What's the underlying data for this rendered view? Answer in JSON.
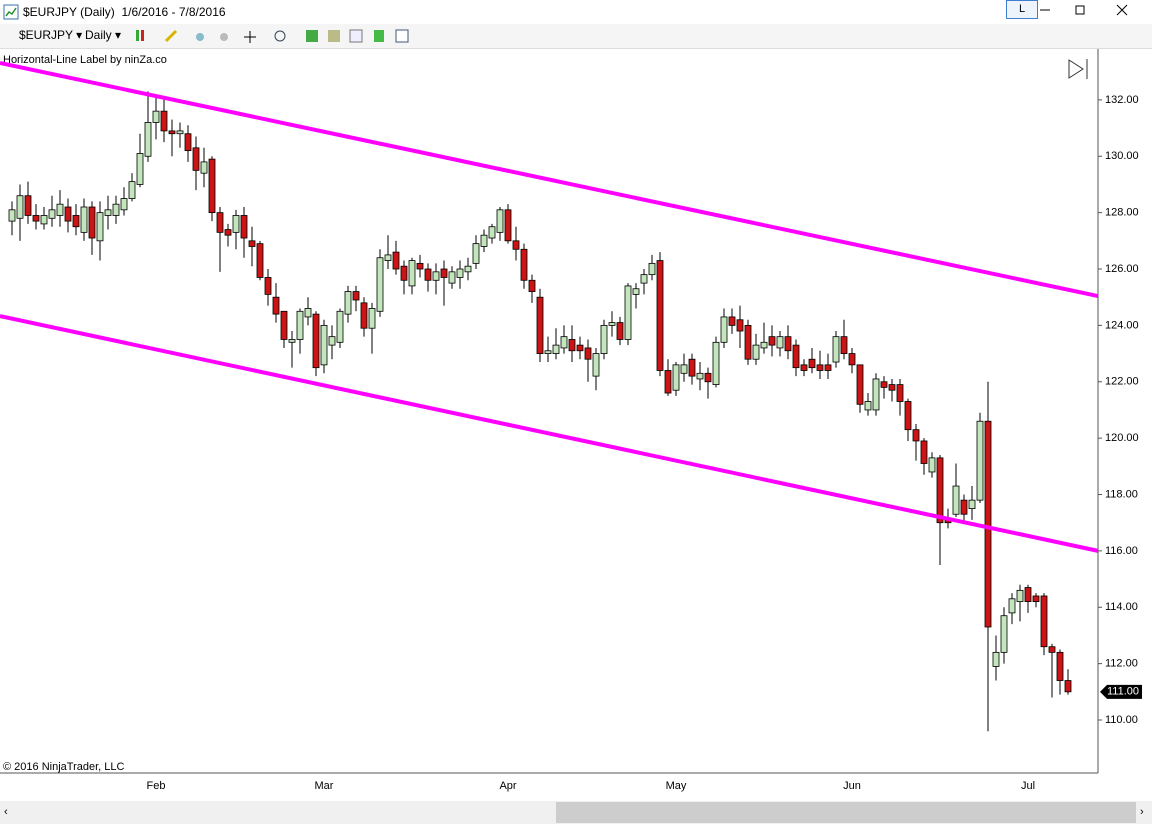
{
  "ui": {
    "window_title": "$EURJPY (Daily)  1/6/2016 - 7/8/2016",
    "instrument": "$EURJPY",
    "interval": "Daily",
    "layout_button": "L",
    "indicator_label": "Horizontal-Line Label by ninZa.co",
    "copyright": "© 2016 NinjaTrader, LLC"
  },
  "chart_data": {
    "type": "candlestick",
    "categories": [
      null,
      null,
      null,
      null,
      null,
      null,
      null,
      null,
      null,
      null,
      null,
      null,
      null,
      null,
      null,
      null,
      null,
      null,
      "Feb",
      null,
      null,
      null,
      null,
      null,
      null,
      null,
      null,
      null,
      null,
      null,
      null,
      null,
      null,
      null,
      null,
      null,
      null,
      null,
      null,
      "Mar",
      null,
      null,
      null,
      null,
      null,
      null,
      null,
      null,
      null,
      null,
      null,
      null,
      null,
      null,
      null,
      null,
      null,
      null,
      null,
      null,
      null,
      null,
      "Apr",
      null,
      null,
      null,
      null,
      null,
      null,
      null,
      null,
      null,
      null,
      null,
      null,
      null,
      null,
      null,
      null,
      null,
      null,
      null,
      null,
      "May",
      null,
      null,
      null,
      null,
      null,
      null,
      null,
      null,
      null,
      null,
      null,
      null,
      null,
      null,
      null,
      null,
      null,
      null,
      null,
      null,
      null,
      "Jun",
      null,
      null,
      null,
      null,
      null,
      null,
      null,
      null,
      null,
      null,
      null,
      null,
      null,
      null,
      null,
      null,
      null,
      null,
      null,
      null,
      null,
      "Jul",
      null,
      null,
      null,
      null,
      null
    ],
    "open": [
      127.7,
      127.8,
      128.6,
      127.9,
      127.6,
      127.8,
      127.9,
      128.2,
      127.9,
      127.3,
      128.2,
      127.0,
      127.9,
      127.9,
      128.1,
      128.5,
      129.0,
      130.0,
      131.2,
      131.6,
      130.9,
      130.8,
      130.8,
      130.3,
      129.4,
      129.9,
      128.0,
      127.4,
      127.3,
      127.9,
      127.0,
      126.9,
      125.7,
      125.0,
      124.5,
      123.4,
      123.5,
      124.3,
      124.4,
      122.6,
      123.3,
      123.4,
      124.4,
      125.2,
      124.8,
      123.9,
      124.5,
      126.3,
      126.6,
      126.1,
      125.4,
      126.2,
      126.0,
      125.6,
      126.0,
      125.5,
      125.7,
      125.9,
      126.2,
      126.8,
      127.1,
      127.3,
      128.1,
      127.0,
      126.7,
      125.6,
      125.0,
      123.0,
      123.0,
      123.2,
      123.5,
      123.3,
      123.2,
      122.2,
      123.0,
      124.0,
      124.1,
      123.5,
      125.1,
      125.5,
      125.8,
      126.3,
      122.4,
      121.7,
      122.3,
      122.8,
      122.1,
      122.3,
      121.9,
      123.4,
      124.3,
      124.2,
      124.0,
      122.8,
      123.2,
      123.6,
      123.2,
      123.6,
      123.3,
      122.6,
      122.8,
      122.6,
      122.6,
      122.7,
      123.6,
      123.0,
      122.6,
      121.0,
      121.0,
      122.0,
      121.9,
      121.9,
      121.3,
      120.3,
      119.9,
      118.8,
      119.3,
      117.1,
      117.3,
      117.8,
      117.5,
      117.8,
      120.6,
      111.9,
      112.4,
      113.8,
      114.2,
      114.7,
      114.4,
      114.4,
      112.6,
      112.4,
      111.4
    ],
    "high": [
      128.4,
      129.0,
      129.1,
      128.3,
      128.2,
      128.6,
      128.8,
      128.5,
      128.3,
      128.5,
      128.4,
      128.4,
      128.6,
      128.6,
      128.9,
      129.4,
      130.8,
      132.3,
      132.2,
      132.1,
      131.3,
      131.2,
      131.1,
      130.7,
      130.3,
      130.0,
      128.2,
      127.6,
      128.1,
      128.2,
      127.5,
      127.0,
      126.0,
      125.5,
      124.5,
      123.8,
      124.6,
      125.0,
      124.5,
      124.2,
      124.0,
      124.6,
      125.4,
      125.4,
      125.0,
      124.8,
      126.7,
      127.2,
      127.0,
      126.3,
      126.4,
      126.5,
      126.2,
      126.2,
      126.3,
      126.1,
      126.3,
      126.4,
      127.2,
      127.4,
      127.6,
      128.2,
      128.3,
      127.5,
      126.9,
      125.8,
      125.3,
      123.6,
      123.9,
      124.0,
      124.0,
      123.6,
      123.5,
      123.2,
      124.2,
      124.5,
      124.3,
      125.5,
      125.5,
      126.0,
      126.5,
      126.6,
      122.8,
      122.7,
      123.0,
      123.0,
      122.7,
      122.5,
      123.6,
      124.6,
      124.6,
      124.7,
      124.2,
      123.7,
      124.1,
      124.0,
      123.8,
      124.0,
      123.5,
      122.8,
      123.2,
      123.1,
      123.0,
      123.8,
      124.2,
      123.2,
      122.6,
      121.6,
      122.3,
      122.2,
      122.1,
      122.1,
      121.4,
      120.5,
      120.0,
      119.5,
      119.4,
      117.5,
      119.1,
      118.0,
      118.3,
      120.9,
      122.0,
      113.0,
      114.0,
      114.5,
      114.8,
      114.8,
      114.5,
      114.5,
      112.7,
      112.5,
      111.8
    ],
    "low": [
      127.2,
      127.0,
      127.6,
      127.4,
      127.4,
      127.5,
      127.5,
      127.3,
      127.2,
      127.0,
      126.5,
      126.3,
      127.4,
      127.6,
      127.9,
      128.4,
      128.9,
      129.8,
      130.6,
      130.5,
      130.0,
      130.3,
      129.8,
      128.8,
      128.9,
      127.7,
      125.9,
      126.8,
      126.7,
      126.4,
      126.1,
      125.6,
      124.7,
      124.1,
      123.2,
      122.5,
      123.0,
      124.0,
      122.2,
      122.3,
      122.8,
      123.2,
      124.1,
      124.5,
      123.6,
      123.0,
      124.3,
      126.0,
      125.8,
      125.1,
      125.1,
      125.7,
      125.2,
      125.1,
      124.7,
      125.3,
      125.3,
      125.6,
      126.0,
      126.6,
      126.9,
      127.0,
      126.9,
      126.3,
      125.3,
      124.8,
      122.7,
      122.7,
      122.8,
      123.0,
      122.7,
      122.8,
      122.0,
      121.7,
      122.8,
      123.6,
      123.3,
      123.3,
      124.6,
      125.1,
      125.6,
      122.2,
      121.5,
      121.5,
      122.0,
      121.9,
      121.7,
      121.4,
      121.8,
      123.2,
      123.7,
      123.2,
      122.6,
      122.6,
      123.0,
      122.9,
      122.9,
      122.8,
      122.2,
      122.2,
      122.3,
      122.1,
      122.1,
      122.5,
      122.8,
      122.3,
      120.9,
      120.8,
      120.8,
      121.4,
      121.3,
      120.8,
      119.9,
      119.2,
      118.7,
      118.6,
      115.5,
      116.8,
      117.2,
      117.0,
      117.1,
      117.7,
      109.6,
      111.4,
      112.0,
      113.4,
      113.5,
      113.8,
      114.0,
      112.3,
      110.8,
      110.9,
      110.9
    ],
    "close": [
      128.1,
      128.6,
      127.9,
      127.7,
      127.9,
      128.1,
      128.3,
      127.7,
      127.5,
      128.2,
      127.1,
      128.0,
      128.1,
      128.3,
      128.5,
      129.1,
      130.1,
      131.2,
      131.6,
      130.9,
      130.8,
      130.9,
      130.2,
      129.5,
      129.8,
      128.0,
      127.3,
      127.2,
      127.9,
      127.1,
      126.8,
      125.7,
      125.1,
      124.4,
      123.5,
      123.5,
      124.5,
      124.6,
      122.5,
      124.0,
      123.6,
      124.5,
      125.2,
      124.9,
      123.9,
      124.6,
      126.4,
      126.5,
      126.0,
      125.6,
      126.3,
      126.0,
      125.6,
      125.9,
      125.7,
      125.9,
      126.0,
      126.1,
      126.9,
      127.2,
      127.5,
      128.1,
      127.0,
      126.7,
      125.6,
      125.2,
      123.0,
      123.1,
      123.3,
      123.6,
      123.1,
      123.1,
      122.8,
      123.0,
      124.0,
      124.1,
      123.5,
      125.4,
      125.3,
      125.8,
      126.2,
      122.4,
      121.6,
      122.6,
      122.6,
      122.2,
      122.3,
      122.0,
      123.4,
      124.3,
      124.0,
      123.8,
      122.8,
      123.3,
      123.4,
      123.3,
      123.6,
      123.1,
      122.5,
      122.4,
      122.5,
      122.4,
      122.4,
      123.6,
      123.0,
      122.6,
      121.2,
      121.3,
      122.1,
      121.8,
      121.7,
      121.3,
      120.3,
      119.9,
      119.1,
      119.3,
      117.0,
      117.0,
      118.3,
      117.3,
      117.8,
      120.6,
      113.3,
      112.4,
      113.7,
      114.3,
      114.6,
      114.2,
      114.2,
      112.6,
      112.4,
      111.4,
      111.0
    ],
    "up_color": "#c4e6bd",
    "down_color": "#cc1414",
    "xlim": [
      -1.5,
      135.75
    ],
    "ylim": [
      108.12,
      133.77
    ],
    "yticks": [
      {
        "value": 110,
        "label": "110.00"
      },
      {
        "value": 112,
        "label": "112.00"
      },
      {
        "value": 114,
        "label": "114.00"
      },
      {
        "value": 116,
        "label": "116.00"
      },
      {
        "value": 118,
        "label": "118.00"
      },
      {
        "value": 120,
        "label": "120.00"
      },
      {
        "value": 122,
        "label": "122.00"
      },
      {
        "value": 124,
        "label": "124.00"
      },
      {
        "value": 126,
        "label": "126.00"
      },
      {
        "value": 128,
        "label": "128.00"
      },
      {
        "value": 130,
        "label": "130.00"
      },
      {
        "value": 132,
        "label": "132.00"
      }
    ],
    "last_price": {
      "value": 111.0,
      "label": "111.00"
    },
    "trend_lines": [
      {
        "color": "#ff00ff",
        "x": [
          -1.5,
          135.75
        ],
        "y": [
          133.31,
          125.04
        ]
      },
      {
        "color": "#ff00ff",
        "x": [
          -1.5,
          135.75
        ],
        "y": [
          124.33,
          116.0
        ]
      }
    ]
  }
}
